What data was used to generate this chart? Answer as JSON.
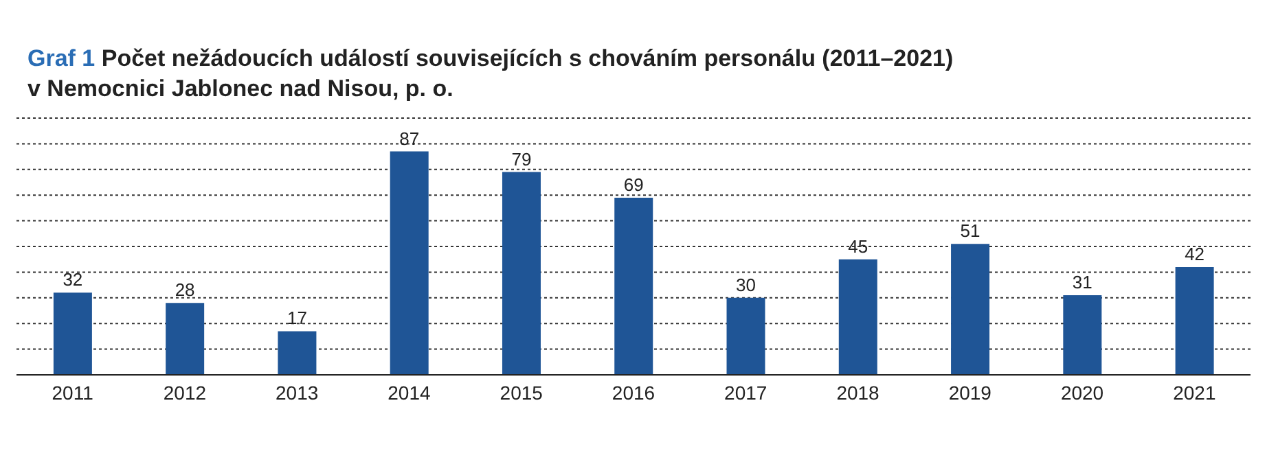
{
  "chart_data": {
    "type": "bar",
    "title": "Graf 1 Počet nežádoucích událostí souvisejících s chováním personálu (2011–2021)\nv Nemocnici Jablonec nad Nisou, p. o.",
    "categories": [
      "2011",
      "2012",
      "2013",
      "2014",
      "2015",
      "2016",
      "2017",
      "2018",
      "2019",
      "2020",
      "2021"
    ],
    "values": [
      32,
      28,
      17,
      87,
      79,
      69,
      30,
      45,
      51,
      31,
      42
    ],
    "color": "#1f5596",
    "ylim": [
      0,
      100
    ],
    "yticks": [
      {
        "value": 0,
        "label": null
      },
      {
        "value": 10,
        "label": null
      },
      {
        "value": 20,
        "label": null
      },
      {
        "value": 30,
        "label": null
      },
      {
        "value": 40,
        "label": null
      },
      {
        "value": 50,
        "label": null
      },
      {
        "value": 60,
        "label": null
      },
      {
        "value": 70,
        "label": null
      },
      {
        "value": 80,
        "label": null
      },
      {
        "value": 90,
        "label": null
      },
      {
        "value": 100,
        "label": null
      }
    ],
    "grid": "y",
    "data_labels": true,
    "tick_labels": "x",
    "legend": false
  }
}
